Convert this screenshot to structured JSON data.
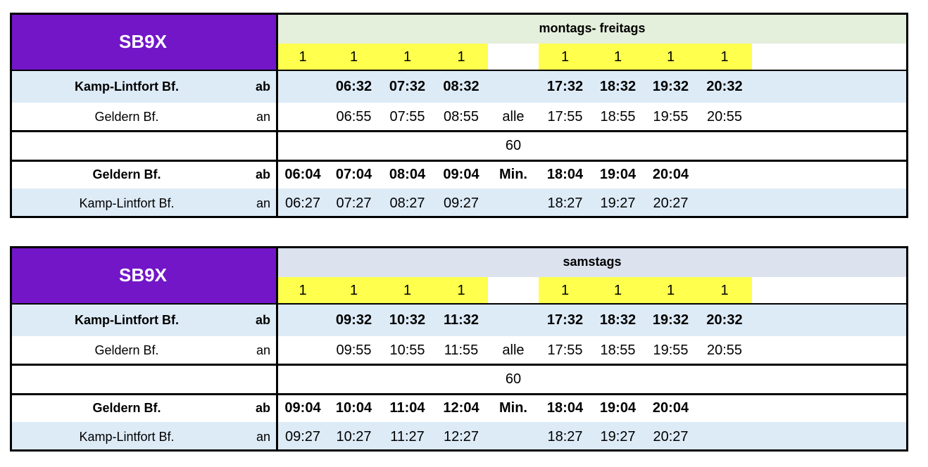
{
  "tables": [
    {
      "line": "SB9X",
      "days": "montags- freitags",
      "header_color": "#e4efdc",
      "notes": [
        "1",
        "1",
        "1",
        "1",
        null,
        "1",
        "1",
        "1",
        "1"
      ],
      "rows": [
        {
          "stop": "Kamp-Lintfort Bf.",
          "type": "ab",
          "times": [
            null,
            "06:32",
            "07:32",
            "08:32",
            null,
            "17:32",
            "18:32",
            "19:32",
            "20:32"
          ]
        },
        {
          "stop": "Geldern Bf.",
          "type": "an",
          "times": [
            null,
            "06:55",
            "07:55",
            "08:55",
            "alle",
            "17:55",
            "18:55",
            "19:55",
            "20:55"
          ]
        },
        {
          "stop": null,
          "type": null,
          "times": [
            null,
            null,
            null,
            null,
            "60",
            null,
            null,
            null,
            null
          ]
        },
        {
          "stop": "Geldern Bf.",
          "type": "ab",
          "times": [
            "06:04",
            "07:04",
            "08:04",
            "09:04",
            "Min.",
            "18:04",
            "19:04",
            "20:04",
            null
          ]
        },
        {
          "stop": "Kamp-Lintfort Bf.",
          "type": "an",
          "times": [
            "06:27",
            "07:27",
            "08:27",
            "09:27",
            null,
            "18:27",
            "19:27",
            "20:27",
            null
          ]
        }
      ]
    },
    {
      "line": "SB9X",
      "days": "samstags",
      "header_color": "#dce3ef",
      "notes": [
        "1",
        "1",
        "1",
        "1",
        null,
        "1",
        "1",
        "1",
        "1"
      ],
      "rows": [
        {
          "stop": "Kamp-Lintfort Bf.",
          "type": "ab",
          "times": [
            null,
            "09:32",
            "10:32",
            "11:32",
            null,
            "17:32",
            "18:32",
            "19:32",
            "20:32"
          ]
        },
        {
          "stop": "Geldern Bf.",
          "type": "an",
          "times": [
            null,
            "09:55",
            "10:55",
            "11:55",
            "alle",
            "17:55",
            "18:55",
            "19:55",
            "20:55"
          ]
        },
        {
          "stop": null,
          "type": null,
          "times": [
            null,
            null,
            null,
            null,
            "60",
            null,
            null,
            null,
            null
          ]
        },
        {
          "stop": "Geldern Bf.",
          "type": "ab",
          "times": [
            "09:04",
            "10:04",
            "11:04",
            "12:04",
            "Min.",
            "18:04",
            "19:04",
            "20:04",
            null
          ]
        },
        {
          "stop": "Kamp-Lintfort Bf.",
          "type": "an",
          "times": [
            "09:27",
            "10:27",
            "11:27",
            "12:27",
            null,
            "18:27",
            "19:27",
            "20:27",
            null
          ]
        }
      ]
    }
  ]
}
